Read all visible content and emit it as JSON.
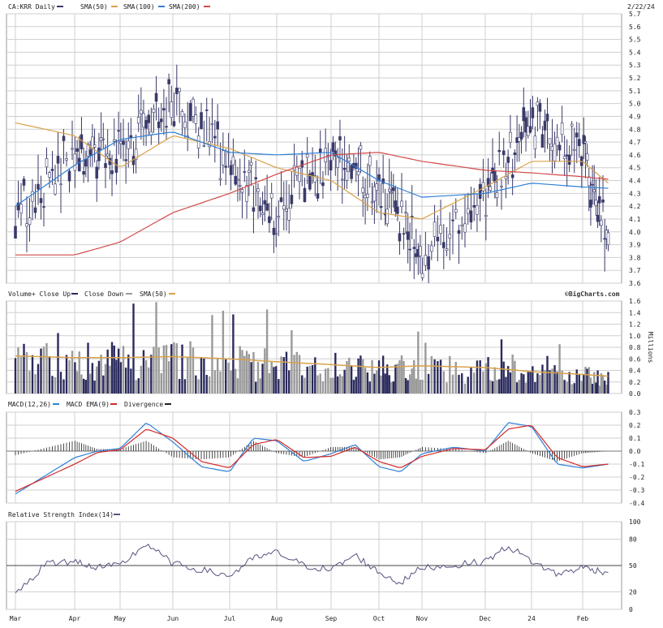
{
  "header": {
    "symbol_label": "CA:KRR Daily",
    "date": "2/22/24",
    "watermark": "©BigCharts.com"
  },
  "colors": {
    "price": "#3a3a6a",
    "sma50": "#d9a24a",
    "sma100": "#2e7fd6",
    "sma200": "#d34a4a",
    "volume_up": "#2a2a5e",
    "volume_down": "#9a9a9a",
    "macd": "#2e7fd6",
    "signal": "#d32a2a",
    "divergence": "#222222",
    "rsi": "#555580"
  },
  "price_panel": {
    "legend": [
      {
        "label": "CA:KRR Daily",
        "color": "#3a3a6a"
      },
      {
        "label": "SMA(50)",
        "color": "#d9a24a"
      },
      {
        "label": "SMA(100)",
        "color": "#2e7fd6"
      },
      {
        "label": "SMA(200)",
        "color": "#d34a4a"
      }
    ]
  },
  "volume_panel": {
    "legend": [
      {
        "label": "Volume+ Close Up",
        "color": "#2a2a5e"
      },
      {
        "label": "Close Down",
        "color": "#9a9a9a"
      },
      {
        "label": "SMA(50)",
        "color": "#d9a24a"
      }
    ],
    "unit": "Millions"
  },
  "macd_panel": {
    "legend": [
      {
        "label": "MACD(12,26)",
        "color": "#2e7fd6"
      },
      {
        "label": "MACD EMA(9)",
        "color": "#d32a2a"
      },
      {
        "label": "Divergence",
        "color": "#222222"
      }
    ]
  },
  "rsi_panel": {
    "legend": [
      {
        "label": "Relative Strength Index(14)",
        "color": "#555580"
      }
    ]
  },
  "chart_data": [
    {
      "type": "line",
      "title": "CA:KRR Daily",
      "ylim": [
        3.6,
        5.7
      ],
      "yticks": [
        "5.7",
        "5.6",
        "5.5",
        "5.4",
        "5.3",
        "5.2",
        "5.1",
        "5.0",
        "4.9",
        "4.8",
        "4.7",
        "4.6",
        "4.5",
        "4.4",
        "4.3",
        "4.2",
        "4.1",
        "4.0",
        "3.9",
        "3.8",
        "3.7",
        "3.6"
      ],
      "xticks": [
        "Mar",
        "Apr",
        "May",
        "Jun",
        "Jul",
        "Aug",
        "Sep",
        "Oct",
        "Nov",
        "Dec",
        "24",
        "Feb"
      ],
      "x": [
        0,
        1,
        2,
        3,
        4,
        5,
        6,
        7,
        8,
        9,
        10,
        11,
        11.7
      ],
      "series": [
        {
          "name": "CA:KRR Daily",
          "values": [
            4.15,
            4.6,
            4.65,
            5.05,
            4.55,
            4.15,
            4.6,
            4.35,
            3.85,
            4.25,
            4.9,
            4.6,
            4.0
          ]
        },
        {
          "name": "SMA(50)",
          "values": [
            4.85,
            4.75,
            4.5,
            4.75,
            4.65,
            4.5,
            4.4,
            4.15,
            4.1,
            4.35,
            4.55,
            4.55,
            4.38
          ]
        },
        {
          "name": "SMA(100)",
          "values": [
            4.2,
            4.52,
            4.72,
            4.78,
            4.62,
            4.6,
            4.62,
            4.4,
            4.27,
            4.3,
            4.38,
            4.35,
            4.34
          ]
        },
        {
          "name": "SMA(200)",
          "values": [
            3.82,
            3.82,
            3.92,
            4.15,
            4.3,
            4.45,
            4.6,
            4.62,
            4.55,
            4.48,
            4.46,
            4.43,
            4.41
          ]
        }
      ]
    },
    {
      "type": "bar",
      "title": "Volume+ Close Up",
      "ylabel": "Millions",
      "ylim": [
        0,
        1.6
      ],
      "yticks": [
        "1.6",
        "1.4",
        "1.2",
        "1.0",
        "0.8",
        "0.6",
        "0.4",
        "0.2",
        "0.0"
      ],
      "x": [
        0,
        1,
        2,
        3,
        4,
        5,
        6,
        7,
        8,
        9,
        10,
        11,
        11.7
      ],
      "series": [
        {
          "name": "SMA(50)",
          "values": [
            0.65,
            0.62,
            0.62,
            0.64,
            0.6,
            0.55,
            0.5,
            0.45,
            0.48,
            0.45,
            0.38,
            0.33,
            0.3
          ]
        }
      ]
    },
    {
      "type": "line",
      "title": "MACD(12,26)",
      "ylim": [
        -0.4,
        0.3
      ],
      "yticks": [
        "0.3",
        "0.2",
        "0.1",
        "0.0",
        "-0.1",
        "-0.2",
        "-0.3",
        "-0.4"
      ],
      "x": [
        0,
        1,
        1.5,
        2,
        2.5,
        3,
        3.5,
        4,
        4.5,
        5,
        5.5,
        6,
        6.5,
        7,
        7.5,
        8,
        8.5,
        9,
        9.5,
        10,
        10.5,
        11,
        11.7
      ],
      "series": [
        {
          "name": "MACD(12,26)",
          "values": [
            -0.33,
            -0.05,
            0.0,
            0.02,
            0.22,
            0.07,
            -0.12,
            -0.16,
            0.1,
            0.08,
            -0.08,
            -0.02,
            0.05,
            -0.12,
            -0.16,
            -0.02,
            0.03,
            0.0,
            0.22,
            0.19,
            -0.1,
            -0.13,
            -0.1
          ]
        },
        {
          "name": "MACD EMA(9)",
          "values": [
            -0.31,
            -0.1,
            -0.01,
            0.01,
            0.17,
            0.1,
            -0.08,
            -0.13,
            0.05,
            0.09,
            -0.05,
            -0.04,
            0.03,
            -0.08,
            -0.13,
            -0.04,
            0.02,
            0.01,
            0.17,
            0.2,
            -0.05,
            -0.12,
            -0.1
          ]
        }
      ]
    },
    {
      "type": "line",
      "title": "Relative Strength Index(14)",
      "ylim": [
        0,
        100
      ],
      "yticks": [
        "100",
        "80",
        "50",
        "20",
        "0"
      ],
      "x": [
        0,
        0.5,
        1,
        1.5,
        2,
        2.5,
        3,
        3.5,
        4,
        4.5,
        5,
        5.5,
        6,
        6.5,
        7,
        7.5,
        8,
        8.5,
        9,
        9.5,
        10,
        10.5,
        11,
        11.7
      ],
      "series": [
        {
          "name": "Relative Strength Index(14)",
          "values": [
            15,
            52,
            55,
            48,
            50,
            75,
            52,
            45,
            38,
            58,
            65,
            50,
            45,
            62,
            42,
            30,
            48,
            50,
            55,
            72,
            55,
            40,
            48,
            42
          ]
        }
      ]
    }
  ]
}
